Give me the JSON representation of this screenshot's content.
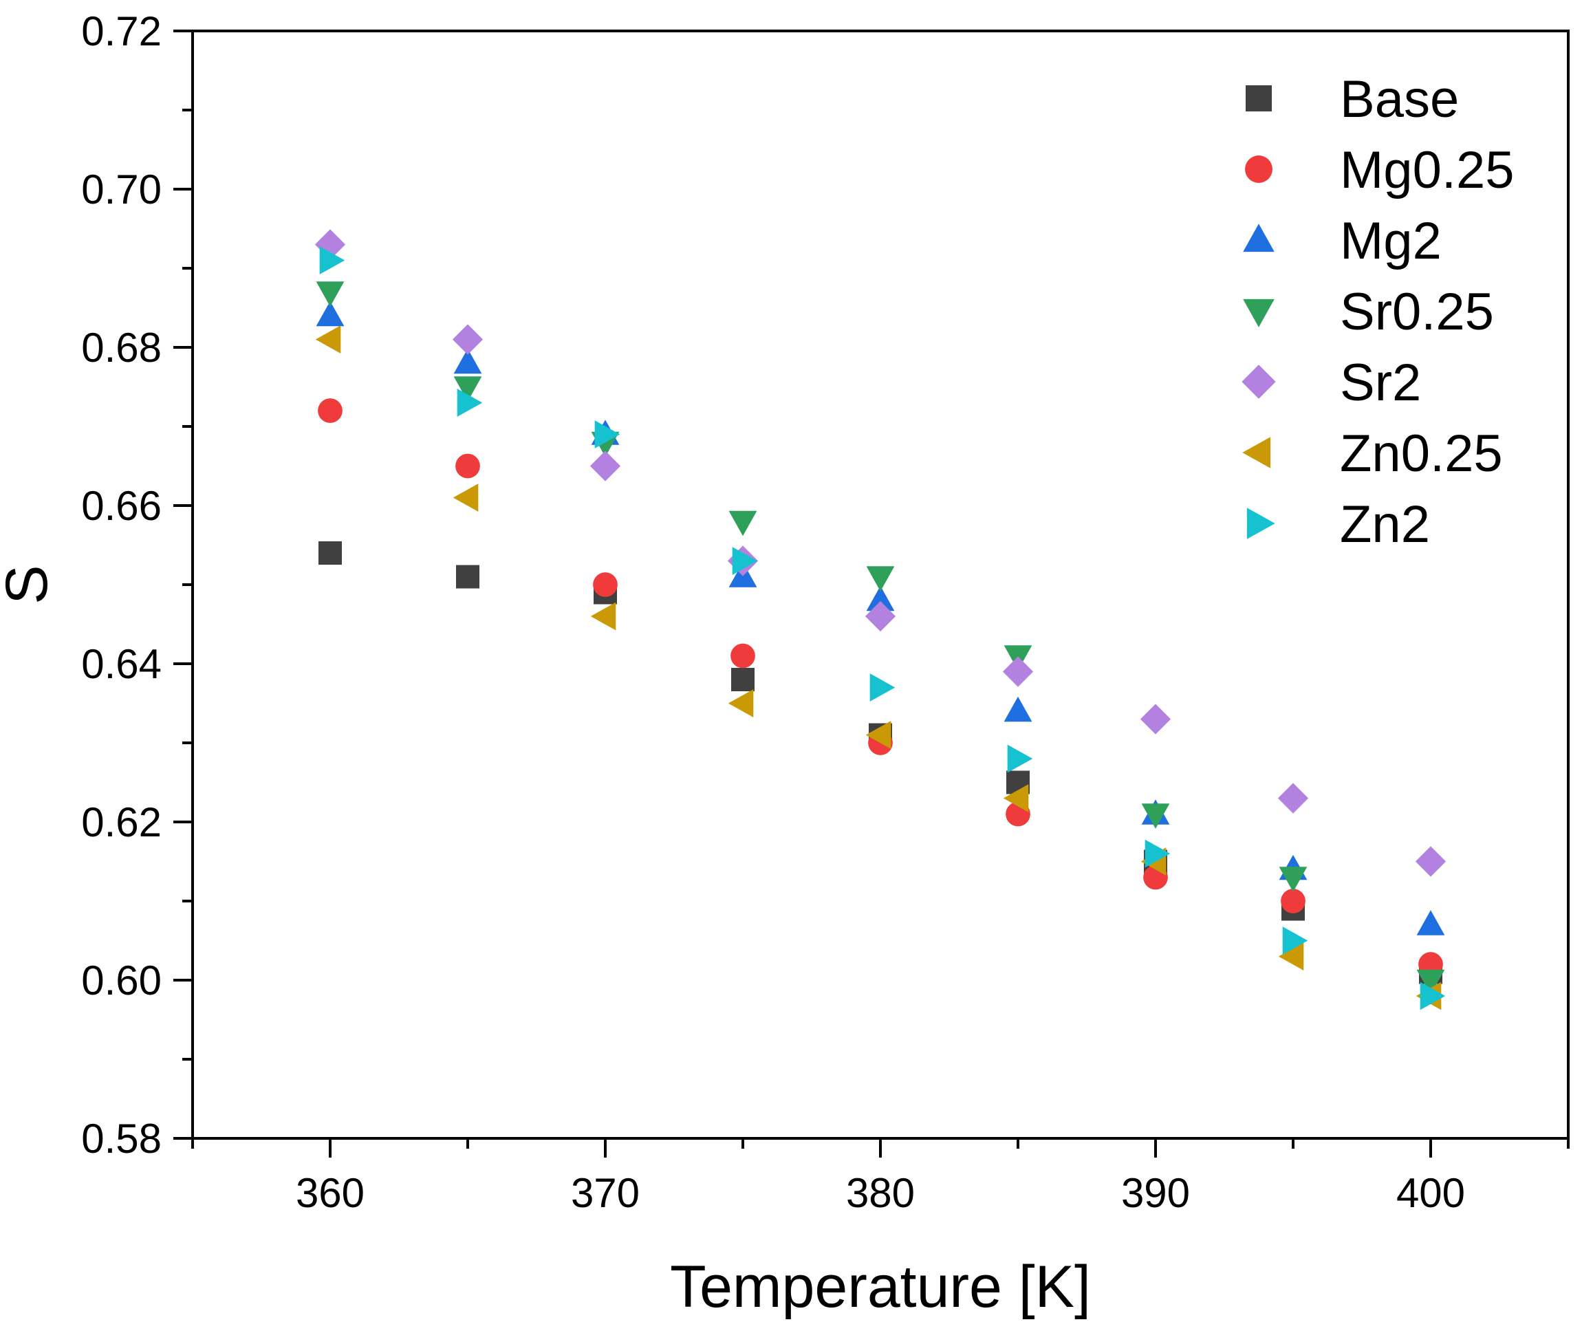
{
  "chart_data": {
    "type": "scatter",
    "title": "",
    "xlabel": "Temperature [K]",
    "ylabel": "S",
    "xlim": [
      355,
      405
    ],
    "ylim": [
      0.58,
      0.72
    ],
    "x_ticks": [
      360,
      370,
      380,
      390,
      400
    ],
    "y_ticks": [
      0.58,
      0.6,
      0.62,
      0.64,
      0.66,
      0.68,
      0.7,
      0.72
    ],
    "x_tick_labels": [
      "360",
      "370",
      "380",
      "390",
      "400"
    ],
    "y_tick_labels": [
      "0.58",
      "0.60",
      "0.62",
      "0.64",
      "0.66",
      "0.68",
      "0.70",
      "0.72"
    ],
    "grid": false,
    "legend_position": "top-right",
    "x": [
      360,
      365,
      370,
      375,
      380,
      385,
      390,
      395,
      400
    ],
    "series": [
      {
        "name": "Base",
        "marker": "square",
        "color": "#404040",
        "values": [
          0.654,
          0.651,
          0.649,
          0.638,
          0.631,
          0.625,
          0.615,
          0.609,
          0.601
        ]
      },
      {
        "name": "Mg0.25",
        "marker": "circle",
        "color": "#ef3b3b",
        "values": [
          0.672,
          0.665,
          0.65,
          0.641,
          0.63,
          0.621,
          0.613,
          0.61,
          0.602
        ]
      },
      {
        "name": "Mg2",
        "marker": "triangle-up",
        "color": "#1f6fe0",
        "values": [
          0.684,
          0.678,
          0.669,
          0.651,
          0.648,
          0.634,
          0.621,
          0.614,
          0.607
        ]
      },
      {
        "name": "Sr0.25",
        "marker": "triangle-down",
        "color": "#2ea05a",
        "values": [
          0.687,
          0.675,
          0.668,
          0.658,
          0.651,
          0.641,
          0.621,
          0.613,
          0.6
        ]
      },
      {
        "name": "Sr2",
        "marker": "diamond",
        "color": "#b381e0",
        "values": [
          0.693,
          0.681,
          0.665,
          0.653,
          0.646,
          0.639,
          0.633,
          0.623,
          0.615
        ]
      },
      {
        "name": "Zn0.25",
        "marker": "triangle-left",
        "color": "#c99a06",
        "values": [
          0.681,
          0.661,
          0.646,
          0.635,
          0.631,
          0.623,
          0.615,
          0.603,
          0.598
        ]
      },
      {
        "name": "Zn2",
        "marker": "triangle-right",
        "color": "#17c2d0",
        "values": [
          0.691,
          0.673,
          0.669,
          0.653,
          0.637,
          0.628,
          0.616,
          0.605,
          0.598
        ]
      }
    ]
  }
}
